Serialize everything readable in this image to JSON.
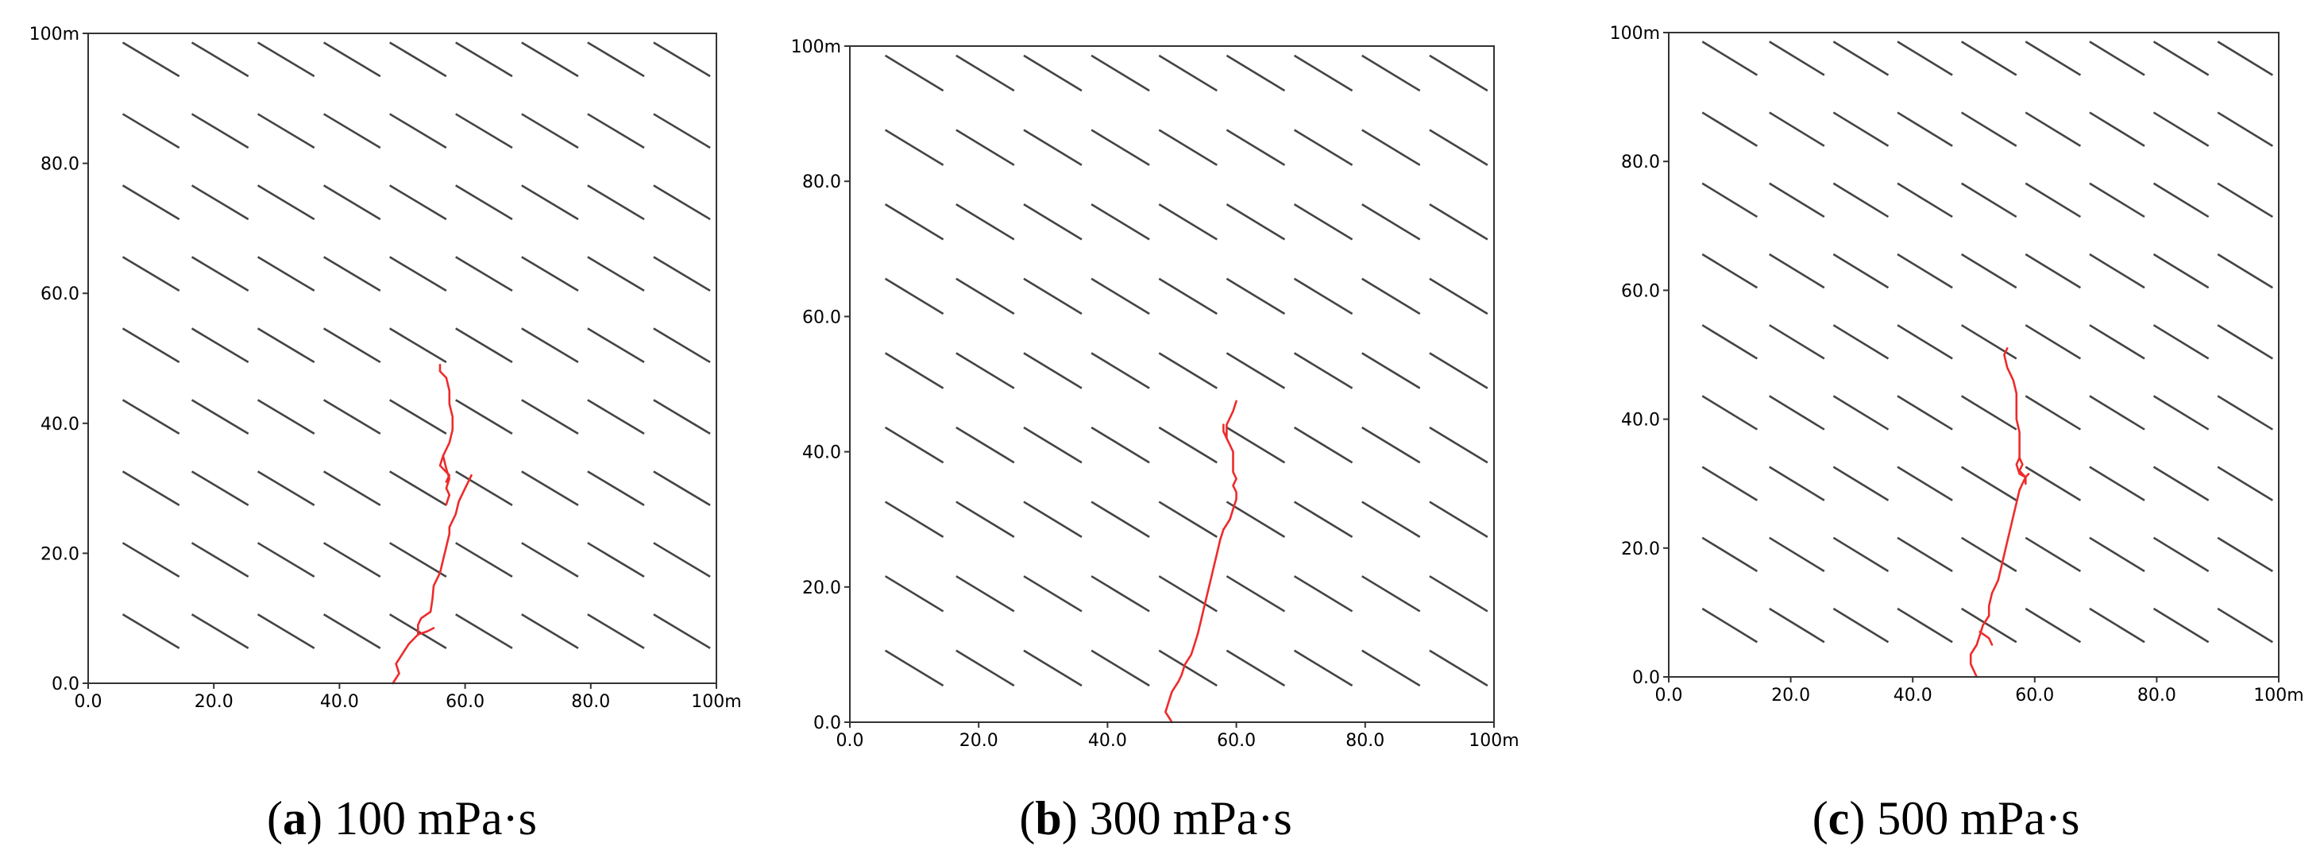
{
  "chart_data": [
    {
      "type": "line",
      "panel_letter": "a",
      "caption_value": "100 mPa·s",
      "xlim": [
        0,
        100
      ],
      "ylim": [
        0,
        100
      ],
      "x_ticks": [
        "0.0",
        "20.0",
        "40.0",
        "60.0",
        "80.0",
        "100m"
      ],
      "y_ticks": [
        "0.0",
        "20.0",
        "40.0",
        "60.0",
        "80.0",
        "100m"
      ],
      "natural_fracture_color": "#444444",
      "fracture_color": "#ee2b2b",
      "fracture_lines": [
        [
          [
            48.5,
            0
          ],
          [
            49.5,
            1.5
          ],
          [
            49,
            3
          ],
          [
            50,
            4.5
          ],
          [
            51,
            6
          ],
          [
            52.5,
            7.5
          ],
          [
            52.5,
            9
          ],
          [
            53,
            10
          ],
          [
            54.5,
            11
          ],
          [
            54.8,
            13
          ],
          [
            55,
            15
          ],
          [
            56,
            17
          ],
          [
            56.5,
            19
          ],
          [
            57,
            21
          ],
          [
            57.5,
            23
          ],
          [
            57.5,
            24
          ],
          [
            58.5,
            26
          ],
          [
            59,
            28
          ],
          [
            60,
            30
          ],
          [
            60.5,
            31
          ],
          [
            61,
            32
          ]
        ],
        [
          [
            56,
            49
          ],
          [
            56,
            48
          ],
          [
            57,
            47
          ],
          [
            57.5,
            45
          ],
          [
            57.5,
            43
          ],
          [
            58,
            41
          ],
          [
            58,
            39
          ],
          [
            57.5,
            37
          ],
          [
            56.5,
            35
          ],
          [
            57,
            33
          ],
          [
            57.5,
            31.5
          ],
          [
            57,
            30
          ],
          [
            57.5,
            29
          ],
          [
            57,
            27.5
          ]
        ],
        [
          [
            56.5,
            35
          ],
          [
            56,
            33.5
          ],
          [
            57.5,
            32
          ],
          [
            57,
            31
          ]
        ],
        [
          [
            52.5,
            7.5
          ],
          [
            54,
            8
          ],
          [
            55,
            8.5
          ]
        ]
      ]
    },
    {
      "type": "line",
      "panel_letter": "b",
      "caption_value": "300 mPa·s",
      "xlim": [
        0,
        100
      ],
      "ylim": [
        0,
        100
      ],
      "x_ticks": [
        "0.0",
        "20.0",
        "40.0",
        "60.0",
        "80.0",
        "100m"
      ],
      "y_ticks": [
        "0.0",
        "20.0",
        "40.0",
        "60.0",
        "80.0",
        "100m"
      ],
      "natural_fracture_color": "#444444",
      "fracture_lines": [
        [
          [
            50,
            0
          ],
          [
            49,
            1.5
          ],
          [
            49.5,
            3
          ],
          [
            50,
            4.5
          ],
          [
            51,
            6
          ],
          [
            51.5,
            7
          ],
          [
            52,
            8.5
          ],
          [
            53,
            10
          ],
          [
            53.5,
            11.5
          ],
          [
            54,
            13
          ],
          [
            54.5,
            15
          ],
          [
            55,
            17
          ],
          [
            55.5,
            19
          ],
          [
            56,
            21
          ],
          [
            56.5,
            23
          ],
          [
            57,
            25
          ],
          [
            57.5,
            27
          ],
          [
            58,
            28.5
          ],
          [
            59,
            30
          ],
          [
            59.5,
            31.5
          ],
          [
            60,
            33
          ],
          [
            60,
            34
          ],
          [
            59.5,
            35
          ],
          [
            60,
            36
          ],
          [
            59.5,
            37
          ],
          [
            59.5,
            38
          ],
          [
            59.5,
            40
          ],
          [
            59,
            41
          ],
          [
            58.5,
            42
          ],
          [
            58.5,
            43
          ],
          [
            58.5,
            44
          ],
          [
            59,
            45
          ],
          [
            59.5,
            46
          ],
          [
            60,
            47.5
          ]
        ],
        [
          [
            58.5,
            42
          ],
          [
            58,
            43
          ],
          [
            58,
            44
          ]
        ]
      ]
    },
    {
      "type": "line",
      "panel_letter": "c",
      "caption_value": "500 mPa·s",
      "xlim": [
        0,
        100
      ],
      "ylim": [
        0,
        100
      ],
      "x_ticks": [
        "0.0",
        "20.0",
        "40.0",
        "60.0",
        "80.0",
        "100m"
      ],
      "y_ticks": [
        "0.0",
        "20.0",
        "40.0",
        "60.0",
        "80.0",
        "100m"
      ],
      "natural_fracture_color": "#444444",
      "fracture_lines": [
        [
          [
            50.5,
            0
          ],
          [
            49.5,
            2
          ],
          [
            49.5,
            3.5
          ],
          [
            50.5,
            5
          ],
          [
            51,
            6.5
          ],
          [
            51.5,
            8
          ],
          [
            52.5,
            9.5
          ],
          [
            52.5,
            11
          ],
          [
            53,
            13
          ],
          [
            54,
            15
          ],
          [
            54.5,
            17
          ],
          [
            55,
            19
          ],
          [
            55.5,
            21
          ],
          [
            56,
            23
          ],
          [
            56.5,
            25
          ],
          [
            57,
            27
          ],
          [
            57.5,
            29
          ],
          [
            58,
            30
          ],
          [
            58.5,
            31
          ],
          [
            59,
            31.5
          ]
        ],
        [
          [
            55.5,
            51
          ],
          [
            55,
            50
          ],
          [
            55.5,
            48
          ],
          [
            56,
            47
          ],
          [
            56.5,
            46
          ],
          [
            57,
            44
          ],
          [
            57,
            42
          ],
          [
            57,
            40
          ],
          [
            57.5,
            38
          ],
          [
            57.5,
            36
          ],
          [
            57.5,
            34
          ],
          [
            58,
            33
          ],
          [
            57.5,
            32
          ],
          [
            58.5,
            31
          ],
          [
            58.5,
            30
          ]
        ],
        [
          [
            57.5,
            34
          ],
          [
            57,
            33
          ],
          [
            57.5,
            31.5
          ],
          [
            58.5,
            31
          ]
        ],
        [
          [
            51,
            7
          ],
          [
            52.5,
            6
          ],
          [
            53,
            5
          ]
        ]
      ]
    }
  ],
  "captions": [
    {
      "letter": "a",
      "text": " 100 mPa·s"
    },
    {
      "letter": "b",
      "text": " 300 mPa·s"
    },
    {
      "letter": "c",
      "text": " 500 mPa·s"
    }
  ]
}
